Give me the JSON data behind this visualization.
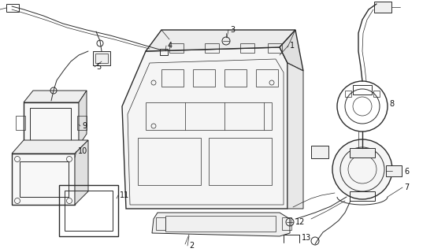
{
  "background_color": "#ffffff",
  "line_color": "#2a2a2a",
  "label_color": "#111111",
  "fig_width": 5.51,
  "fig_height": 3.2,
  "dpi": 100
}
